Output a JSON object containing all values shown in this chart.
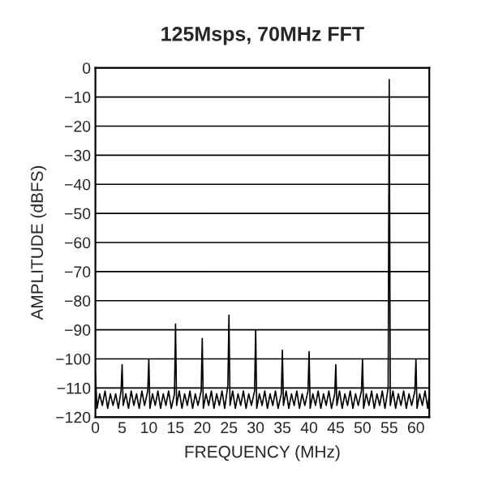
{
  "chart_data": {
    "type": "line",
    "title": "125Msps, 70MHz FFT",
    "xlabel": "FREQUENCY (MHz)",
    "ylabel": "AMPLITUDE (dBFS)",
    "series": [
      {
        "color": "#000000",
        "x": [
          0,
          0.3,
          0.8,
          1.3,
          1.8,
          2.3,
          2.8,
          3.3,
          3.8,
          4.3,
          4.8,
          5,
          5.2,
          5.7,
          6.2,
          6.7,
          7.2,
          7.7,
          8.2,
          8.7,
          9.2,
          9.8,
          10,
          10.2,
          10.7,
          11.2,
          11.7,
          12.2,
          12.7,
          13.2,
          13.7,
          14.2,
          14.8,
          15,
          15.2,
          15.7,
          16.2,
          16.7,
          17.2,
          17.7,
          18.2,
          18.7,
          19.2,
          19.8,
          20,
          20.2,
          20.7,
          21.2,
          21.7,
          22.2,
          22.7,
          23.2,
          23.7,
          24.2,
          24.8,
          25,
          25.2,
          25.7,
          26.2,
          26.7,
          27.2,
          27.7,
          28.2,
          28.7,
          29.2,
          29.8,
          30,
          30.2,
          30.7,
          31.2,
          31.7,
          32.2,
          32.7,
          33.2,
          33.7,
          34.2,
          34.8,
          35,
          35.2,
          35.7,
          36.2,
          36.7,
          37.2,
          37.7,
          38.2,
          38.7,
          39.2,
          39.8,
          40,
          40.2,
          40.7,
          41.2,
          41.7,
          42.2,
          42.7,
          43.2,
          43.7,
          44.2,
          44.8,
          45,
          45.2,
          45.7,
          46.2,
          46.7,
          47.2,
          47.7,
          48.2,
          48.7,
          49.2,
          49.8,
          50,
          50.2,
          50.7,
          51.2,
          51.7,
          52.2,
          52.7,
          53.2,
          53.7,
          54.2,
          54.8,
          55,
          55.2,
          55.7,
          56.2,
          56.7,
          57.2,
          57.7,
          58.2,
          58.7,
          59.2,
          59.8,
          60,
          60.2,
          60.7,
          61.2,
          61.7,
          62.2,
          62.5
        ],
        "values": [
          -105,
          -117,
          -112,
          -116,
          -111,
          -117,
          -112,
          -116,
          -112,
          -117,
          -111,
          -102,
          -116,
          -112,
          -117,
          -111,
          -116,
          -112,
          -117,
          -111,
          -116,
          -111,
          -100,
          -117,
          -112,
          -116,
          -111,
          -117,
          -112,
          -116,
          -111,
          -117,
          -112,
          -88,
          -116,
          -111,
          -117,
          -112,
          -116,
          -111,
          -117,
          -112,
          -116,
          -111,
          -93,
          -117,
          -112,
          -116,
          -111,
          -117,
          -112,
          -116,
          -111,
          -117,
          -109,
          -85,
          -116,
          -111,
          -117,
          -112,
          -116,
          -111,
          -117,
          -112,
          -116,
          -111,
          -90,
          -117,
          -112,
          -116,
          -111,
          -117,
          -112,
          -116,
          -111,
          -117,
          -112,
          -97,
          -116,
          -111,
          -117,
          -112,
          -116,
          -111,
          -117,
          -112,
          -116,
          -111,
          -97.5,
          -117,
          -112,
          -116,
          -111,
          -117,
          -112,
          -116,
          -111,
          -117,
          -112,
          -102,
          -116,
          -111,
          -117,
          -112,
          -116,
          -111,
          -117,
          -112,
          -116,
          -111,
          -100,
          -117,
          -112,
          -116,
          -111,
          -117,
          -112,
          -116,
          -111,
          -117,
          -110,
          -4,
          -116,
          -111,
          -117,
          -112,
          -116,
          -111,
          -117,
          -112,
          -116,
          -111,
          -100,
          -117,
          -112,
          -116,
          -111,
          -117,
          -112
        ]
      }
    ],
    "xlim": [
      0,
      62.5
    ],
    "ylim": [
      -120,
      0
    ],
    "xticks": [
      0,
      5,
      10,
      15,
      20,
      25,
      30,
      35,
      40,
      45,
      50,
      55,
      60
    ],
    "yticks": [
      -120,
      -110,
      -100,
      -90,
      -80,
      -70,
      -60,
      -50,
      -40,
      -30,
      -20,
      -10,
      0
    ],
    "grid": "y",
    "marker": "none",
    "line_style": "solid"
  }
}
